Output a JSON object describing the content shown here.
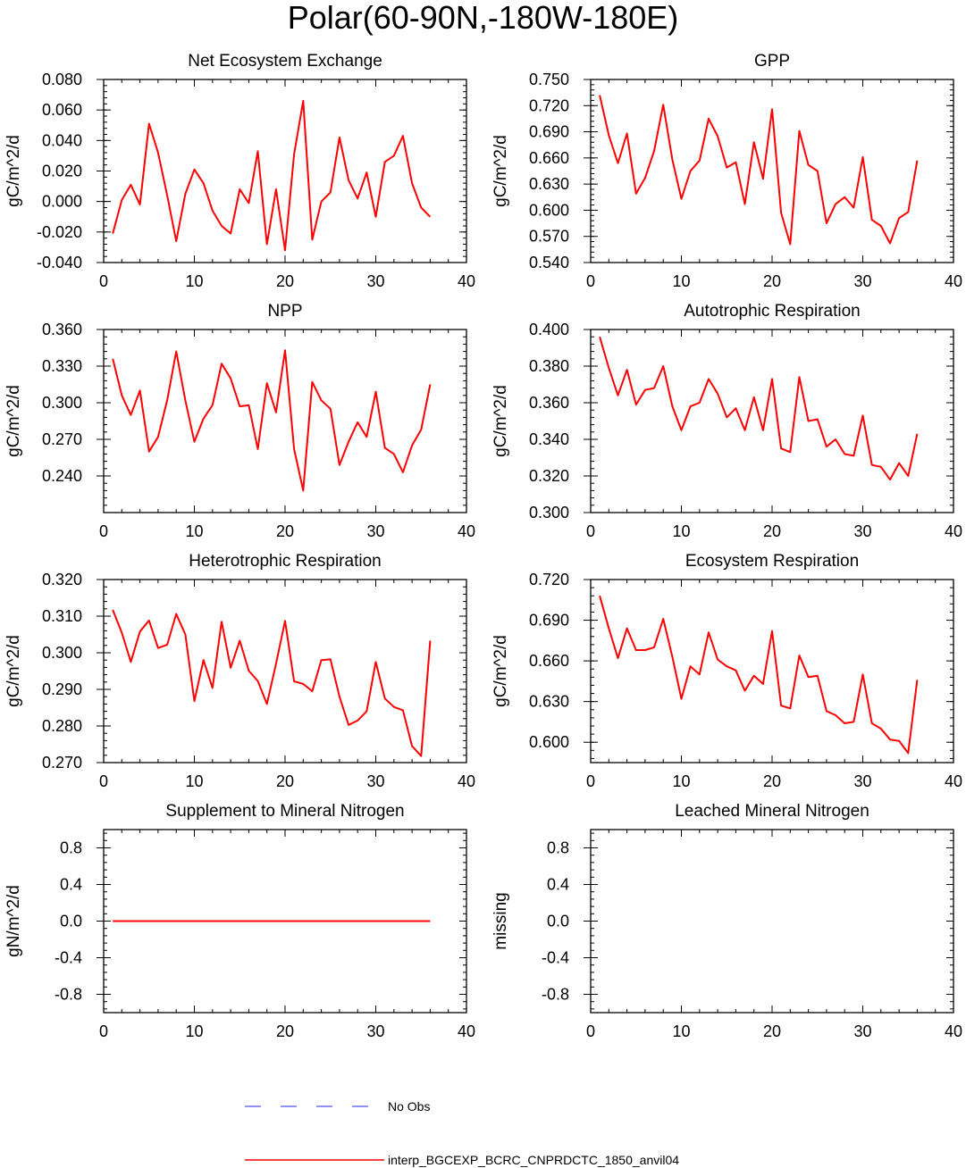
{
  "page_title": "Polar(60-90N,-180W-180E)",
  "colors": {
    "model_line": "#ff0000",
    "obs_line": "#6b6bff",
    "axis": "#000000"
  },
  "legend": {
    "obs_label": "No Obs",
    "model_label": "interp_BGCEXP_BCRC_CNPRDCTC_1850_anvil04"
  },
  "chart_data": [
    {
      "type": "line",
      "title": "Net Ecosystem Exchange",
      "xlabel": "",
      "ylabel": "gC/m^2/d",
      "xlim": [
        0,
        40
      ],
      "ylim": [
        -0.04,
        0.08
      ],
      "xticks": [
        0,
        10,
        20,
        30,
        40
      ],
      "xtick_labels": [
        "0",
        "10",
        "20",
        "30",
        "40"
      ],
      "yticks": [
        -0.04,
        -0.02,
        0.0,
        0.02,
        0.04,
        0.06,
        0.08
      ],
      "ytick_labels": [
        "-0.040",
        "-0.020",
        "0.000",
        "0.020",
        "0.040",
        "0.060",
        "0.080"
      ],
      "series": [
        {
          "name": "interp_BGCEXP_BCRC_CNPRDCTC_1850_anvil04",
          "x": [
            1,
            2,
            3,
            4,
            5,
            6,
            7,
            8,
            9,
            10,
            11,
            12,
            13,
            14,
            15,
            16,
            17,
            18,
            19,
            20,
            21,
            22,
            23,
            24,
            25,
            26,
            27,
            28,
            29,
            30,
            31,
            32,
            33,
            34,
            35,
            36
          ],
          "values": [
            -0.021,
            0.001,
            0.011,
            -0.002,
            0.051,
            0.032,
            0.004,
            -0.026,
            0.005,
            0.021,
            0.012,
            -0.006,
            -0.016,
            -0.021,
            0.008,
            -0.001,
            0.033,
            -0.028,
            0.008,
            -0.032,
            0.031,
            0.066,
            -0.025,
            0.0,
            0.006,
            0.042,
            0.014,
            0.002,
            0.019,
            -0.01,
            0.026,
            0.03,
            0.043,
            0.012,
            -0.004,
            -0.01
          ]
        }
      ]
    },
    {
      "type": "line",
      "title": "GPP",
      "xlabel": "",
      "ylabel": "gC/m^2/d",
      "xlim": [
        0,
        40
      ],
      "ylim": [
        0.54,
        0.75
      ],
      "xticks": [
        0,
        10,
        20,
        30,
        40
      ],
      "xtick_labels": [
        "0",
        "10",
        "20",
        "30",
        "40"
      ],
      "yticks": [
        0.54,
        0.57,
        0.6,
        0.63,
        0.66,
        0.69,
        0.72,
        0.75
      ],
      "ytick_labels": [
        "0.540",
        "0.570",
        "0.600",
        "0.630",
        "0.660",
        "0.690",
        "0.720",
        "0.750"
      ],
      "series": [
        {
          "name": "interp_BGCEXP_BCRC_CNPRDCTC_1850_anvil04",
          "x": [
            1,
            2,
            3,
            4,
            5,
            6,
            7,
            8,
            9,
            10,
            11,
            12,
            13,
            14,
            15,
            16,
            17,
            18,
            19,
            20,
            21,
            22,
            23,
            24,
            25,
            26,
            27,
            28,
            29,
            30,
            31,
            32,
            33,
            34,
            35,
            36
          ],
          "values": [
            0.732,
            0.686,
            0.654,
            0.688,
            0.619,
            0.637,
            0.668,
            0.721,
            0.658,
            0.613,
            0.645,
            0.657,
            0.705,
            0.685,
            0.649,
            0.655,
            0.607,
            0.678,
            0.636,
            0.716,
            0.597,
            0.561,
            0.691,
            0.652,
            0.645,
            0.585,
            0.607,
            0.615,
            0.603,
            0.661,
            0.589,
            0.582,
            0.562,
            0.591,
            0.598,
            0.657
          ]
        }
      ]
    },
    {
      "type": "line",
      "title": "NPP",
      "xlabel": "",
      "ylabel": "gC/m^2/d",
      "xlim": [
        0,
        40
      ],
      "ylim": [
        0.21,
        0.36
      ],
      "xticks": [
        0,
        10,
        20,
        30,
        40
      ],
      "xtick_labels": [
        "0",
        "10",
        "20",
        "30",
        "40"
      ],
      "yticks": [
        0.24,
        0.27,
        0.3,
        0.33,
        0.36
      ],
      "ytick_labels": [
        "0.240",
        "0.270",
        "0.300",
        "0.330",
        "0.360"
      ],
      "series": [
        {
          "name": "interp_BGCEXP_BCRC_CNPRDCTC_1850_anvil04",
          "x": [
            1,
            2,
            3,
            4,
            5,
            6,
            7,
            8,
            9,
            10,
            11,
            12,
            13,
            14,
            15,
            16,
            17,
            18,
            19,
            20,
            21,
            22,
            23,
            24,
            25,
            26,
            27,
            28,
            29,
            30,
            31,
            32,
            33,
            34,
            35,
            36
          ],
          "values": [
            0.336,
            0.306,
            0.29,
            0.31,
            0.26,
            0.272,
            0.302,
            0.342,
            0.302,
            0.268,
            0.287,
            0.298,
            0.332,
            0.32,
            0.297,
            0.298,
            0.262,
            0.316,
            0.292,
            0.343,
            0.262,
            0.228,
            0.317,
            0.302,
            0.295,
            0.249,
            0.268,
            0.284,
            0.272,
            0.309,
            0.263,
            0.258,
            0.243,
            0.265,
            0.278,
            0.315
          ]
        }
      ]
    },
    {
      "type": "line",
      "title": "Autotrophic Respiration",
      "xlabel": "",
      "ylabel": "gC/m^2/d",
      "xlim": [
        0,
        40
      ],
      "ylim": [
        0.3,
        0.4
      ],
      "xticks": [
        0,
        10,
        20,
        30,
        40
      ],
      "xtick_labels": [
        "0",
        "10",
        "20",
        "30",
        "40"
      ],
      "yticks": [
        0.3,
        0.32,
        0.34,
        0.36,
        0.38,
        0.4
      ],
      "ytick_labels": [
        "0.300",
        "0.320",
        "0.340",
        "0.360",
        "0.380",
        "0.400"
      ],
      "series": [
        {
          "name": "interp_BGCEXP_BCRC_CNPRDCTC_1850_anvil04",
          "x": [
            1,
            2,
            3,
            4,
            5,
            6,
            7,
            8,
            9,
            10,
            11,
            12,
            13,
            14,
            15,
            16,
            17,
            18,
            19,
            20,
            21,
            22,
            23,
            24,
            25,
            26,
            27,
            28,
            29,
            30,
            31,
            32,
            33,
            34,
            35,
            36
          ],
          "values": [
            0.396,
            0.379,
            0.364,
            0.378,
            0.359,
            0.367,
            0.368,
            0.38,
            0.358,
            0.345,
            0.358,
            0.36,
            0.373,
            0.365,
            0.352,
            0.357,
            0.345,
            0.363,
            0.345,
            0.373,
            0.335,
            0.333,
            0.374,
            0.35,
            0.351,
            0.336,
            0.34,
            0.332,
            0.331,
            0.353,
            0.326,
            0.325,
            0.318,
            0.327,
            0.32,
            0.343
          ]
        }
      ]
    },
    {
      "type": "line",
      "title": "Heterotrophic Respiration",
      "xlabel": "",
      "ylabel": "gC/m^2/d",
      "xlim": [
        0,
        40
      ],
      "ylim": [
        0.27,
        0.32
      ],
      "xticks": [
        0,
        10,
        20,
        30,
        40
      ],
      "xtick_labels": [
        "0",
        "10",
        "20",
        "30",
        "40"
      ],
      "yticks": [
        0.27,
        0.28,
        0.29,
        0.3,
        0.31,
        0.32
      ],
      "ytick_labels": [
        "0.270",
        "0.280",
        "0.290",
        "0.300",
        "0.310",
        "0.320"
      ],
      "series": [
        {
          "name": "interp_BGCEXP_BCRC_CNPRDCTC_1850_anvil04",
          "x": [
            1,
            2,
            3,
            4,
            5,
            6,
            7,
            8,
            9,
            10,
            11,
            12,
            13,
            14,
            15,
            16,
            17,
            18,
            19,
            20,
            21,
            22,
            23,
            24,
            25,
            26,
            27,
            28,
            29,
            30,
            31,
            32,
            33,
            34,
            35,
            36
          ],
          "values": [
            0.3117,
            0.3055,
            0.2975,
            0.3058,
            0.3088,
            0.3013,
            0.3022,
            0.3106,
            0.305,
            0.2868,
            0.298,
            0.2904,
            0.3085,
            0.2959,
            0.3033,
            0.2951,
            0.2923,
            0.286,
            0.297,
            0.3087,
            0.2922,
            0.2915,
            0.2895,
            0.298,
            0.2982,
            0.288,
            0.2803,
            0.2815,
            0.284,
            0.2975,
            0.2875,
            0.2852,
            0.2843,
            0.2745,
            0.2718,
            0.3033
          ]
        }
      ]
    },
    {
      "type": "line",
      "title": "Ecosystem Respiration",
      "xlabel": "",
      "ylabel": "gC/m^2/d",
      "xlim": [
        0,
        40
      ],
      "ylim": [
        0.585,
        0.72
      ],
      "xticks": [
        0,
        10,
        20,
        30,
        40
      ],
      "xtick_labels": [
        "0",
        "10",
        "20",
        "30",
        "40"
      ],
      "yticks": [
        0.6,
        0.63,
        0.66,
        0.69,
        0.72
      ],
      "ytick_labels": [
        "0.600",
        "0.630",
        "0.660",
        "0.690",
        "0.720"
      ],
      "series": [
        {
          "name": "interp_BGCEXP_BCRC_CNPRDCTC_1850_anvil04",
          "x": [
            1,
            2,
            3,
            4,
            5,
            6,
            7,
            8,
            9,
            10,
            11,
            12,
            13,
            14,
            15,
            16,
            17,
            18,
            19,
            20,
            21,
            22,
            23,
            24,
            25,
            26,
            27,
            28,
            29,
            30,
            31,
            32,
            33,
            34,
            35,
            36
          ],
          "values": [
            0.708,
            0.684,
            0.662,
            0.684,
            0.668,
            0.668,
            0.67,
            0.691,
            0.663,
            0.632,
            0.656,
            0.65,
            0.681,
            0.661,
            0.656,
            0.653,
            0.638,
            0.649,
            0.643,
            0.682,
            0.627,
            0.625,
            0.664,
            0.648,
            0.649,
            0.623,
            0.62,
            0.614,
            0.615,
            0.65,
            0.614,
            0.61,
            0.602,
            0.601,
            0.592,
            0.646
          ]
        }
      ]
    },
    {
      "type": "line",
      "title": "Supplement to Mineral Nitrogen",
      "xlabel": "",
      "ylabel": "gN/m^2/d",
      "xlim": [
        0,
        40
      ],
      "ylim": [
        -1.0,
        1.0
      ],
      "xticks": [
        0,
        10,
        20,
        30,
        40
      ],
      "xtick_labels": [
        "0",
        "10",
        "20",
        "30",
        "40"
      ],
      "yticks": [
        -0.8,
        -0.4,
        0.0,
        0.4,
        0.8
      ],
      "ytick_labels": [
        "-0.8",
        "-0.4",
        "0.0",
        "0.4",
        "0.8"
      ],
      "series": [
        {
          "name": "interp_BGCEXP_BCRC_CNPRDCTC_1850_anvil04",
          "x": [
            1,
            2,
            3,
            4,
            5,
            6,
            7,
            8,
            9,
            10,
            11,
            12,
            13,
            14,
            15,
            16,
            17,
            18,
            19,
            20,
            21,
            22,
            23,
            24,
            25,
            26,
            27,
            28,
            29,
            30,
            31,
            32,
            33,
            34,
            35,
            36
          ],
          "values": [
            0,
            0,
            0,
            0,
            0,
            0,
            0,
            0,
            0,
            0,
            0,
            0,
            0,
            0,
            0,
            0,
            0,
            0,
            0,
            0,
            0,
            0,
            0,
            0,
            0,
            0,
            0,
            0,
            0,
            0,
            0,
            0,
            0,
            0,
            0,
            0
          ]
        }
      ]
    },
    {
      "type": "line",
      "title": "Leached Mineral Nitrogen",
      "xlabel": "",
      "ylabel": "missing",
      "xlim": [
        0,
        40
      ],
      "ylim": [
        -1.0,
        1.0
      ],
      "xticks": [
        0,
        10,
        20,
        30,
        40
      ],
      "xtick_labels": [
        "0",
        "10",
        "20",
        "30",
        "40"
      ],
      "yticks": [
        -0.8,
        -0.4,
        0.0,
        0.4,
        0.8
      ],
      "ytick_labels": [
        "-0.8",
        "-0.4",
        "0.0",
        "0.4",
        "0.8"
      ],
      "series": []
    }
  ]
}
